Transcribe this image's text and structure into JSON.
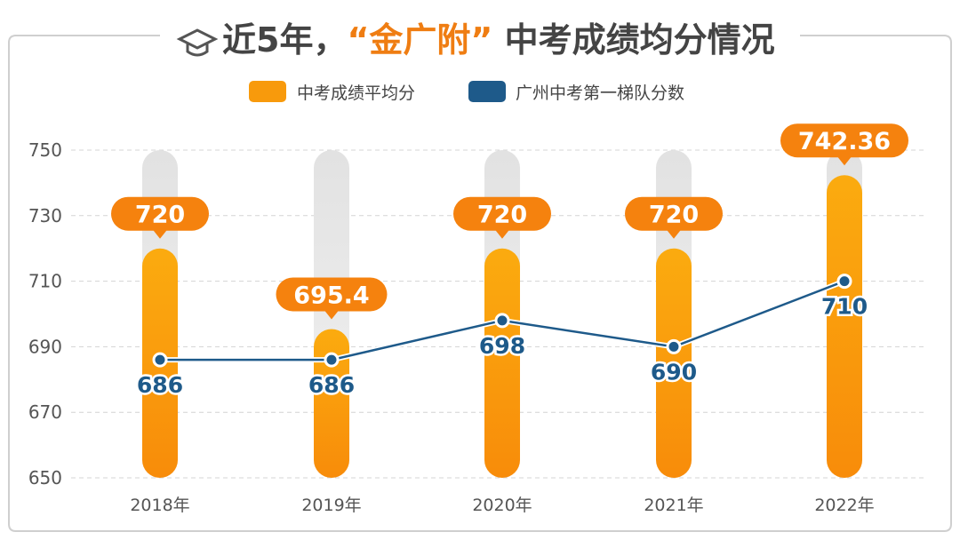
{
  "chart_data": {
    "type": "bar",
    "title_prefix": "近5年，",
    "title_highlight": "“金广附”",
    "title_suffix": " 中考成绩均分情况",
    "title_icon": "graduation-cap-icon",
    "categories": [
      "2018年",
      "2019年",
      "2020年",
      "2021年",
      "2022年"
    ],
    "series": [
      {
        "name": "中考成绩平均分",
        "type": "bar",
        "color": "#f89a0c",
        "values": [
          720,
          695.4,
          720,
          720,
          742.36
        ],
        "labels": [
          "720",
          "695.4",
          "720",
          "720",
          "742.36"
        ]
      },
      {
        "name": "广州中考第一梯队分数",
        "type": "line",
        "color": "#1e5a8a",
        "values": [
          686,
          686,
          698,
          690,
          710
        ],
        "labels": [
          "686",
          "686",
          "698",
          "690",
          "710"
        ]
      }
    ],
    "yticks": [
      "650",
      "670",
      "690",
      "710",
      "730",
      "750"
    ],
    "ylim": [
      650,
      750
    ],
    "grid": true,
    "legend": "top-center",
    "colors": {
      "bar_top": "#fbab0f",
      "bar_bottom": "#f88c0a",
      "bubble": "#f5820e",
      "track": "#e6e6e6",
      "line": "#1e5a8a",
      "highlight": "#ef7d12"
    }
  }
}
